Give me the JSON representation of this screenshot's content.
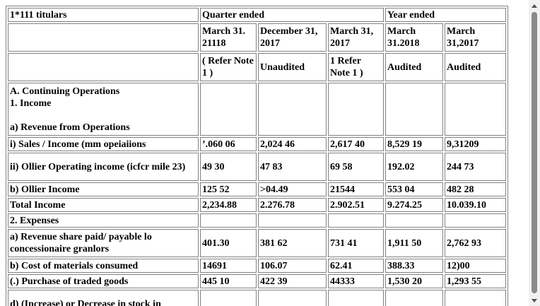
{
  "header": {
    "corner": "1*111 titulars",
    "quarter_ended": "Quarter ended",
    "year_ended": "Year ended",
    "col_dates": [
      "March 31. 21118",
      "December 31, 2017",
      "March 31, 2017",
      "March 31.2018",
      "March 31,2017"
    ],
    "col_notes": [
      "( Refer Note 1 )",
      "Unaudited",
      "1 Refer Note 1 )",
      "Audited",
      "Audited"
    ]
  },
  "sections": {
    "continuing_ops": "A. Continuing Operations",
    "income": "1. Income",
    "revenue_ops": "a) Revenue from Operations",
    "expenses": "2. Expenses"
  },
  "rows": [
    {
      "label": "i) Sales / Income (mm opeiaiions",
      "values": [
        "’.060 06",
        "2,024 46",
        "2,617 40",
        "8,529 19",
        "9,31209"
      ]
    },
    {
      "label": "ii) Ollier Operating income (icfcr mile 23)",
      "values": [
        "49 30",
        "47 83",
        "69 58",
        "192.02",
        "244 73"
      ]
    },
    {
      "label": "b) Ollier Income",
      "values": [
        "125 52",
        ">04.49",
        "21544",
        "553 04",
        "482 28"
      ]
    },
    {
      "label": "Total Income",
      "values": [
        "2,234.88",
        "2.276.78",
        "2.902.51",
        "9.274.25",
        "10.039.10"
      ]
    },
    {
      "label": "a) Revenue share paid/ payable lo concessionaire granlors",
      "values": [
        "401.30",
        "381 62",
        "731 41",
        "1,911 50",
        "2,762 93"
      ]
    },
    {
      "label": "b) Cost of materials consumed",
      "values": [
        "14691",
        "106.07",
        "62.41",
        "388.33",
        "12)00"
      ]
    },
    {
      "label": "(.) Purchase of traded goods",
      "values": [
        "445 10",
        "422 39",
        "44333",
        "1,530 20",
        "1,293 55"
      ]
    },
    {
      "label": "d) (Increase) or Decrease in stock in",
      "values": [
        "",
        "",
        "",
        "",
        ""
      ]
    }
  ]
}
